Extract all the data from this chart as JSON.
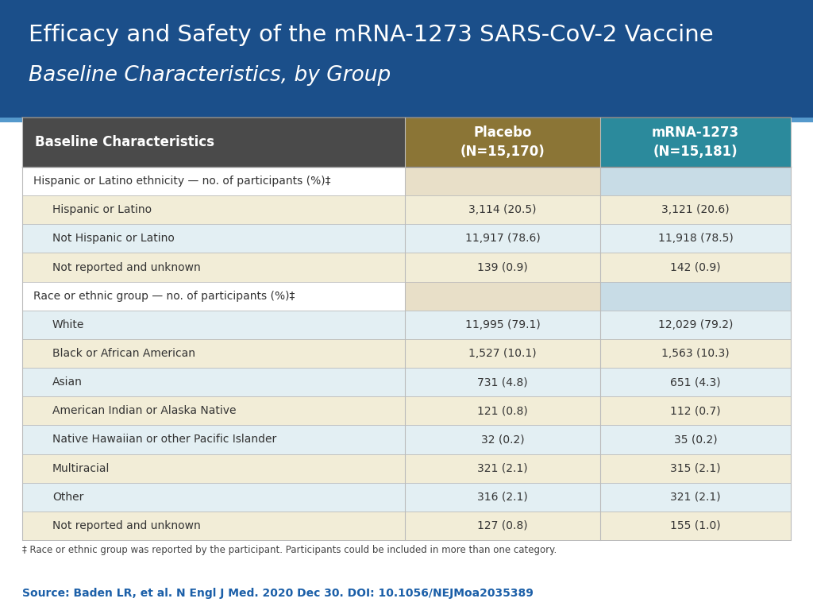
{
  "title_line1": "Efficacy and Safety of the mRNA-1273 SARS-CoV-2 Vaccine",
  "title_line2": "Baseline Characteristics, by Group",
  "header_col1": "Baseline Characteristics",
  "header_col2": "Placebo\n(N=15,170)",
  "header_col3": "mRNA-1273\n(N=15,181)",
  "col1_header_color": "#4a4a4a",
  "col2_header_color": "#8B7536",
  "col3_header_color": "#2B8A9C",
  "title_bg_color": "#1B4F8A",
  "footnote": "‡ Race or ethnic group was reported by the participant. Participants could be included in more than one category.",
  "source": "Source: Baden LR, et al. N Engl J Med. 2020 Dec 30. DOI: 10.1056/NEJMoa2035389",
  "rows": [
    {
      "label": "Hispanic or Latino ethnicity — no. of participants (%)‡",
      "placebo": "",
      "mrna": "",
      "section_header": true
    },
    {
      "label": "Hispanic or Latino",
      "placebo": "3,114 (20.5)",
      "mrna": "3,121 (20.6)",
      "section_header": false
    },
    {
      "label": "Not Hispanic or Latino",
      "placebo": "11,917 (78.6)",
      "mrna": "11,918 (78.5)",
      "section_header": false
    },
    {
      "label": "Not reported and unknown",
      "placebo": "139 (0.9)",
      "mrna": "142 (0.9)",
      "section_header": false
    },
    {
      "label": "Race or ethnic group — no. of participants (%)‡",
      "placebo": "",
      "mrna": "",
      "section_header": true
    },
    {
      "label": "White",
      "placebo": "11,995 (79.1)",
      "mrna": "12,029 (79.2)",
      "section_header": false
    },
    {
      "label": "Black or African American",
      "placebo": "1,527 (10.1)",
      "mrna": "1,563 (10.3)",
      "section_header": false
    },
    {
      "label": "Asian",
      "placebo": "731 (4.8)",
      "mrna": "651 (4.3)",
      "section_header": false
    },
    {
      "label": "American Indian or Alaska Native",
      "placebo": "121 (0.8)",
      "mrna": "112 (0.7)",
      "section_header": false
    },
    {
      "label": "Native Hawaiian or other Pacific Islander",
      "placebo": "32 (0.2)",
      "mrna": "35 (0.2)",
      "section_header": false
    },
    {
      "label": "Multiracial",
      "placebo": "321 (2.1)",
      "mrna": "315 (2.1)",
      "section_header": false
    },
    {
      "label": "Other",
      "placebo": "316 (2.1)",
      "mrna": "321 (2.1)",
      "section_header": false
    },
    {
      "label": "Not reported and unknown",
      "placebo": "127 (0.8)",
      "mrna": "155 (1.0)",
      "section_header": false
    }
  ],
  "row_colors": [
    "#F2EDD7",
    "#E3EFF3"
  ],
  "section_header_col1_color": "#FFFFFF",
  "section_header_col2_color": "#E8DFC8",
  "section_header_col3_color": "#C8DCE6",
  "header_text_color": "#FFFFFF",
  "body_text_color": "#333333",
  "source_color": "#1B5FA8",
  "table_outer_bg": "#EEEEEE"
}
